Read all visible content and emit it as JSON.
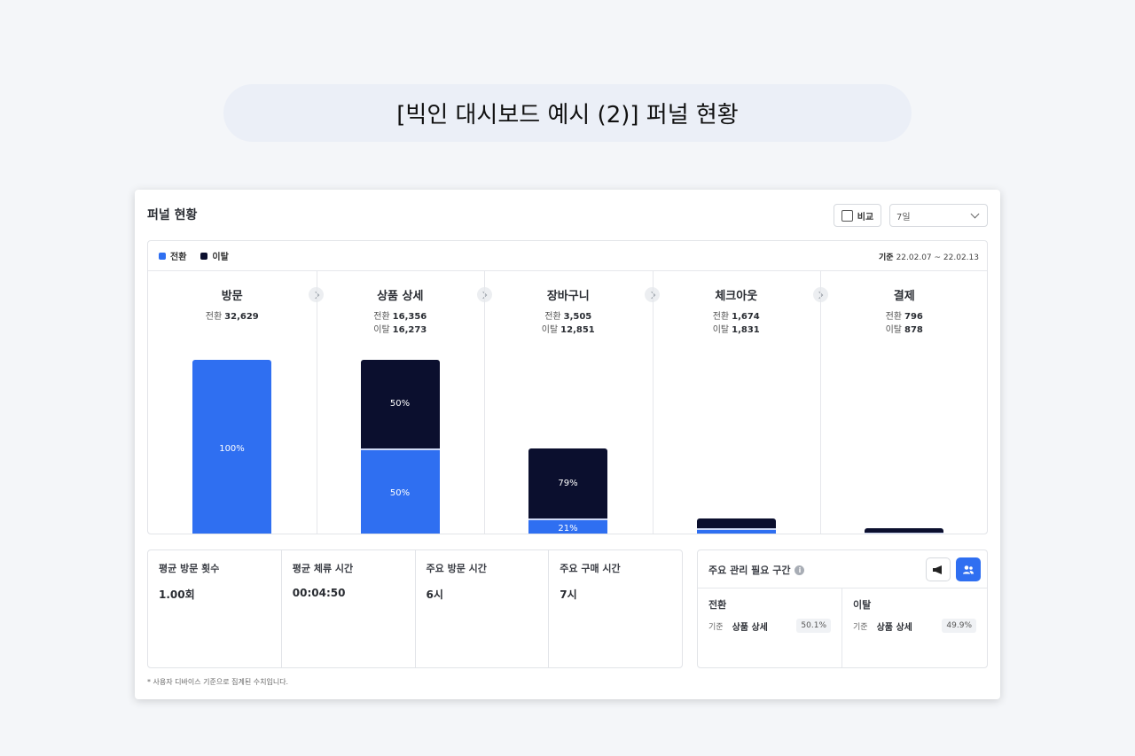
{
  "caption": "[빅인 대시보드 예시 (2)] 퍼널 현황",
  "header": {
    "title": "퍼널 현황",
    "compare_label": "비교",
    "period_value": "7일"
  },
  "legend": {
    "conversion": "전환",
    "drop": "이탈",
    "conversion_color": "#2f6ff1",
    "drop_color": "#0b0f2e"
  },
  "date_range": {
    "label": "기준",
    "value": "22.02.07 ~ 22.02.13"
  },
  "stat_labels": {
    "conversion": "전환",
    "drop": "이탈"
  },
  "stages": [
    {
      "name": "방문",
      "conversion": "32,629",
      "drop": "",
      "conv_pct": "100%",
      "drop_pct": "",
      "conv_ratio": 1.0,
      "drop_ratio": 0
    },
    {
      "name": "상품 상세",
      "conversion": "16,356",
      "drop": "16,273",
      "conv_pct": "50%",
      "drop_pct": "50%",
      "conv_ratio": 0.5013,
      "drop_ratio": 0.4987
    },
    {
      "name": "장바구니",
      "conversion": "3,505",
      "drop": "12,851",
      "conv_pct": "21%",
      "drop_pct": "79%",
      "conv_ratio": 0.1074,
      "drop_ratio": 0.3939
    },
    {
      "name": "체크아웃",
      "conversion": "1,674",
      "drop": "1,831",
      "conv_pct": "",
      "drop_pct": "",
      "conv_ratio": 0.0513,
      "drop_ratio": 0.0561
    },
    {
      "name": "결제",
      "conversion": "796",
      "drop": "878",
      "conv_pct": "",
      "drop_pct": "",
      "conv_ratio": 0.0244,
      "drop_ratio": 0.0269
    }
  ],
  "metrics": [
    {
      "label": "평균 방문 횟수",
      "value": "1.00회"
    },
    {
      "label": "평균 체류 시간",
      "value": "00:04:50"
    },
    {
      "label": "주요 방문 시간",
      "value": "6시"
    },
    {
      "label": "주요 구매 시간",
      "value": "7시"
    }
  ],
  "key_section": {
    "title": "주요 관리 필요 구간",
    "info_icon": "i",
    "icons": [
      "megaphone-icon",
      "users-icon"
    ],
    "conversion": {
      "title": "전환",
      "basis": "기준",
      "stage": "상품 상세",
      "pct": "50.1%"
    },
    "drop": {
      "title": "이탈",
      "basis": "기준",
      "stage": "상품 상세",
      "pct": "49.9%"
    }
  },
  "footnote": "* 사용자 디바이스 기준으로 집계된 수치입니다."
}
